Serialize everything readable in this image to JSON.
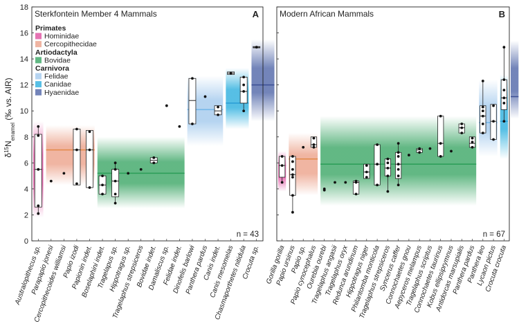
{
  "chart_data": {
    "type": "box",
    "ylabel": {
      "prefix": "δ",
      "sup": "15",
      "base": "N",
      "sub": "enamel",
      "suffix": " (‰ vs. AIR)"
    },
    "ylim": [
      0,
      18
    ],
    "yticks": [
      0,
      2,
      4,
      6,
      8,
      10,
      12,
      14,
      16,
      18
    ],
    "colors": {
      "Hominidae": "#e15ba6",
      "Cercopithecidae": "#eda892",
      "Bovidae": "#47ab6e",
      "Felidae": "#a9cdee",
      "Canidae": "#39b4e0",
      "Hyaenidae": "#5a6fad",
      "CercopithecidaeLine": "#e38b4c",
      "BovidaeLine": "#2e9f5a",
      "FelidaeLine": "#74b7ea",
      "CanidaeLine": "#2c9fd6",
      "HyaenidaeLine": "#3f5296"
    },
    "legend": [
      {
        "type": "header",
        "label": "Primates"
      },
      {
        "type": "item",
        "label": "Hominidae",
        "group": "Hominidae"
      },
      {
        "type": "item",
        "label": "Cercopithecidae",
        "group": "Cercopithecidae"
      },
      {
        "type": "header",
        "label": "Artiodactyla"
      },
      {
        "type": "item",
        "label": "Bovidae",
        "group": "Bovidae"
      },
      {
        "type": "header",
        "label": "Carnivora"
      },
      {
        "type": "item",
        "label": "Felidae",
        "group": "Felidae"
      },
      {
        "type": "item",
        "label": "Canidae",
        "group": "Canidae"
      },
      {
        "type": "item",
        "label": "Hyaenidae",
        "group": "Hyaenidae"
      }
    ],
    "panels": [
      {
        "id": "A",
        "title": "Sterkfontein Member 4 Mammals",
        "n": "n = 43",
        "groups": [
          {
            "name": "Hominidae",
            "range": [
              1.8,
              9.2
            ],
            "mean": 5.5,
            "from": 0,
            "to": 0
          },
          {
            "name": "Cercopithecidae",
            "range": [
              4.3,
              8.9
            ],
            "mean": 7.0,
            "from": 1,
            "to": 4
          },
          {
            "name": "Bovidae",
            "range": [
              2.5,
              8.0
            ],
            "mean": 5.2,
            "from": 5,
            "to": 11
          },
          {
            "name": "Felidae",
            "range": [
              7.3,
              12.7
            ],
            "mean": 10.1,
            "from": 12,
            "to": 14
          },
          {
            "name": "Canidae",
            "range": [
              8.6,
              13.3
            ],
            "mean": 10.6,
            "from": 15,
            "to": 16
          },
          {
            "name": "Hyaenidae",
            "range": [
              9.2,
              15.5
            ],
            "mean": 12.0,
            "from": 17,
            "to": 18
          }
        ],
        "taxa": [
          {
            "name": "Australopithecus sp.",
            "box": [
              2.6,
              8.2
            ],
            "median": 5.5,
            "points": [
              2.1,
              2.7,
              5.5,
              5.5,
              8.1,
              8.8
            ]
          },
          {
            "name": "Parapapio jonesi",
            "points": [
              4.6
            ]
          },
          {
            "name": "Cercopithecoides williamsi",
            "points": [
              5.2
            ]
          },
          {
            "name": "Papio izodi",
            "box": [
              4.3,
              8.6
            ],
            "median": 7.0,
            "points": [
              4.4,
              7.0,
              8.6
            ]
          },
          {
            "name": "Papionin indet.",
            "box": [
              4.1,
              8.5
            ],
            "median": 7.0,
            "points": [
              4.1,
              7.0,
              8.4
            ]
          },
          {
            "name": "Boselaphini indet.",
            "box": [
              3.6,
              5.0
            ],
            "median": 4.3,
            "points": [
              3.6,
              4.3,
              5.0
            ]
          },
          {
            "name": "Tragelapus sp.",
            "box": [
              3.4,
              5.5
            ],
            "median": 4.6,
            "points": [
              2.9,
              3.6,
              4.6,
              5.5,
              6.0
            ]
          },
          {
            "name": "Hippotragus sp.",
            "points": [
              5.2
            ]
          },
          {
            "name": "Tragelaphus strepsiceros",
            "points": [
              5.5
            ]
          },
          {
            "name": "Bovidae indet.",
            "box": [
              6.0,
              6.4
            ],
            "median": 6.2,
            "points": [
              6.0,
              6.4
            ]
          },
          {
            "name": "Damaliscus sp.",
            "points": [
              10.4
            ]
          },
          {
            "name": "Felidae indet.",
            "points": [
              8.8
            ]
          },
          {
            "name": "Dinofelis barlowi",
            "box": [
              9.0,
              12.5
            ],
            "median": 10.8,
            "points": [
              9.0,
              12.5
            ]
          },
          {
            "name": "Panthera pardus",
            "points": [
              11.1
            ]
          },
          {
            "name": "Canis indet.",
            "box": [
              9.7,
              10.4
            ],
            "median": 10.0,
            "points": [
              9.7,
              10.3
            ]
          },
          {
            "name": "Canis mesomelas",
            "box": [
              12.8,
              13.0
            ],
            "median": 12.9,
            "points": [
              12.9
            ]
          },
          {
            "name": "Chasmaporthetes nitidula",
            "box": [
              10.6,
              12.6
            ],
            "median": 11.5,
            "points": [
              10.0,
              11.5,
              12.0,
              12.6
            ]
          },
          {
            "name": "Crocuta sp.",
            "box": [
              14.85,
              14.95
            ],
            "median": 14.9,
            "points": [
              14.9
            ]
          }
        ]
      },
      {
        "id": "B",
        "title": "Modern African Mammals",
        "n": "n = 67",
        "groups": [
          {
            "name": "Hominidae",
            "range": [
              3.8,
              6.9
            ],
            "mean": 5.8,
            "from": 0,
            "to": 0
          },
          {
            "name": "Cercopithecidae",
            "range": [
              3.5,
              8.3
            ],
            "mean": 6.3,
            "from": 1,
            "to": 3
          },
          {
            "name": "Bovidae",
            "range": [
              2.7,
              9.6
            ],
            "mean": 5.9,
            "from": 4,
            "to": 18
          },
          {
            "name": "Felidae",
            "range": [
              6.5,
              12.4
            ],
            "mean": 9.1,
            "from": 19,
            "to": 20
          },
          {
            "name": "Canidae",
            "range": [
              6.3,
              12.8
            ],
            "mean": 9.2,
            "from": 21,
            "to": 21
          },
          {
            "name": "Hyaenidae",
            "range": [
              9.4,
              15.4
            ],
            "mean": 11.1,
            "from": 22,
            "to": 22
          }
        ],
        "taxa": [
          {
            "name": "Gorilla gorilla",
            "box": [
              4.9,
              6.5
            ],
            "median": 5.8,
            "points": [
              4.5,
              5.8,
              6.5
            ]
          },
          {
            "name": "Papio ursinus",
            "box": [
              3.5,
              6.5
            ],
            "median": 5.1,
            "points": [
              2.2,
              3.5,
              4.9,
              5.1,
              5.5,
              6.1,
              6.5
            ]
          },
          {
            "name": "Papio sp.",
            "points": [
              7.2
            ]
          },
          {
            "name": "Papio cynocephalus",
            "box": [
              7.2,
              8.0
            ],
            "median": 7.4,
            "points": [
              7.2,
              7.4,
              7.9
            ]
          },
          {
            "name": "Ourebia ourebi",
            "points": [
              3.9,
              4.0
            ]
          },
          {
            "name": "Tragelaphus angasii",
            "points": [
              4.5
            ]
          },
          {
            "name": "Tragelaphus oryx",
            "points": [
              4.5
            ]
          },
          {
            "name": "Redunca arundinum",
            "box": [
              3.6,
              4.6
            ],
            "median": 4.5,
            "points": [
              3.6,
              4.5,
              4.6
            ]
          },
          {
            "name": "Hippotragus niger",
            "box": [
              4.8,
              5.9
            ],
            "median": 5.3,
            "points": [
              4.9,
              5.3,
              5.8
            ]
          },
          {
            "name": "Philantomba monticola",
            "box": [
              4.3,
              7.4
            ],
            "median": 5.9,
            "points": [
              4.3,
              5.9,
              7.4
            ]
          },
          {
            "name": "Tragelaphus strepsiceros",
            "box": [
              5.0,
              6.3
            ],
            "median": 5.6,
            "points": [
              3.8,
              5.0,
              5.6,
              6.3,
              6.0
            ]
          },
          {
            "name": "Syncerus caffer",
            "box": [
              4.8,
              6.8
            ],
            "median": 5.9,
            "points": [
              4.3,
              5.0,
              5.5,
              5.9,
              6.5,
              6.8,
              7.5
            ]
          },
          {
            "name": "Connochaetes gnou",
            "points": [
              6.6
            ]
          },
          {
            "name": "Aepyceros melampus",
            "box": [
              6.8,
              7.1
            ],
            "median": 7.0,
            "points": [
              6.8,
              7.1
            ]
          },
          {
            "name": "Tragelaphus scriptus",
            "points": [
              7.1
            ]
          },
          {
            "name": "Connochaetes taurinus",
            "box": [
              6.5,
              9.6
            ],
            "median": 7.5,
            "points": [
              6.5,
              7.5,
              9.6
            ]
          },
          {
            "name": "Kobus ellipsiprymnus",
            "points": [
              6.9
            ]
          },
          {
            "name": "Antidorcas marsupialis",
            "box": [
              8.3,
              9.0
            ],
            "median": 8.7,
            "points": [
              8.3,
              8.7,
              9.0
            ]
          },
          {
            "name": "Panthera pardus",
            "box": [
              7.2,
              8.0
            ],
            "median": 7.5,
            "points": [
              7.2,
              7.6,
              7.9
            ]
          },
          {
            "name": "Panthera leo",
            "box": [
              8.3,
              10.4
            ],
            "median": 9.6,
            "points": [
              8.3,
              9.0,
              9.6,
              10.0,
              10.3,
              12.3
            ]
          },
          {
            "name": "Lycaon pictus",
            "box": [
              7.8,
              10.5
            ],
            "median": 9.2,
            "points": [
              7.8,
              9.2,
              10.4
            ]
          },
          {
            "name": "Crocuta crocuta",
            "box": [
              10.1,
              12.4
            ],
            "median": 11.0,
            "points": [
              9.2,
              10.6,
              11.0,
              11.6,
              12.4,
              14.9
            ]
          }
        ]
      }
    ]
  }
}
